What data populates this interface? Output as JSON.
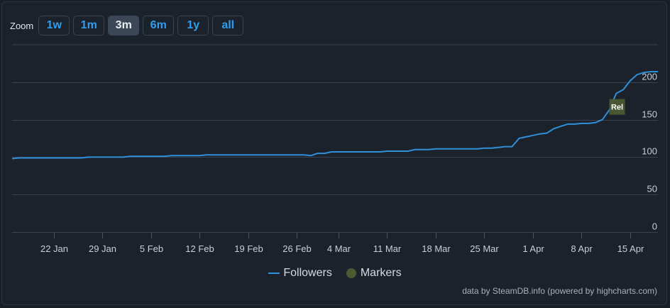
{
  "zoom": {
    "label": "Zoom",
    "buttons": [
      {
        "label": "1w",
        "active": false
      },
      {
        "label": "1m",
        "active": false
      },
      {
        "label": "3m",
        "active": true
      },
      {
        "label": "6m",
        "active": false
      },
      {
        "label": "1y",
        "active": false
      },
      {
        "label": "all",
        "active": false
      }
    ]
  },
  "legend": {
    "followers": "Followers",
    "markers": "Markers"
  },
  "credits": "data by SteamDB.info (powered by highcharts.com)",
  "colors": {
    "line": "#2f8fd8",
    "marker": "#4c5a33",
    "grid": "#3a4250",
    "text": "#d6dbe0"
  },
  "chart_data": {
    "type": "line",
    "title": "",
    "xlabel": "",
    "ylabel": "",
    "ylim": [
      0,
      250
    ],
    "yticks": [
      0,
      50,
      100,
      150,
      200
    ],
    "xrange": [
      "2025-01-16",
      "2025-04-19"
    ],
    "xticks": [
      {
        "date": "2025-01-22",
        "label": "22 Jan"
      },
      {
        "date": "2025-01-29",
        "label": "29 Jan"
      },
      {
        "date": "2025-02-05",
        "label": "5 Feb"
      },
      {
        "date": "2025-02-12",
        "label": "12 Feb"
      },
      {
        "date": "2025-02-19",
        "label": "19 Feb"
      },
      {
        "date": "2025-02-26",
        "label": "26 Feb"
      },
      {
        "date": "2025-03-04",
        "label": "4 Mar"
      },
      {
        "date": "2025-03-11",
        "label": "11 Mar"
      },
      {
        "date": "2025-03-18",
        "label": "18 Mar"
      },
      {
        "date": "2025-03-25",
        "label": "25 Mar"
      },
      {
        "date": "2025-04-01",
        "label": "1 Apr"
      },
      {
        "date": "2025-04-08",
        "label": "8 Apr"
      },
      {
        "date": "2025-04-15",
        "label": "15 Apr"
      }
    ],
    "grid": true,
    "legend_position": "bottom-center",
    "series": [
      {
        "name": "Followers",
        "points": [
          [
            "2025-01-16",
            98
          ],
          [
            "2025-01-17",
            99
          ],
          [
            "2025-01-26",
            99
          ],
          [
            "2025-01-27",
            100
          ],
          [
            "2025-02-01",
            100
          ],
          [
            "2025-02-02",
            101
          ],
          [
            "2025-02-07",
            101
          ],
          [
            "2025-02-08",
            102
          ],
          [
            "2025-02-12",
            102
          ],
          [
            "2025-02-13",
            103
          ],
          [
            "2025-02-27",
            103
          ],
          [
            "2025-02-28",
            102
          ],
          [
            "2025-03-01",
            105
          ],
          [
            "2025-03-02",
            105
          ],
          [
            "2025-03-03",
            107
          ],
          [
            "2025-03-10",
            107
          ],
          [
            "2025-03-11",
            108
          ],
          [
            "2025-03-14",
            108
          ],
          [
            "2025-03-15",
            110
          ],
          [
            "2025-03-17",
            110
          ],
          [
            "2025-03-18",
            111
          ],
          [
            "2025-03-24",
            111
          ],
          [
            "2025-03-25",
            112
          ],
          [
            "2025-03-26",
            112
          ],
          [
            "2025-03-27",
            113
          ],
          [
            "2025-03-28",
            114
          ],
          [
            "2025-03-29",
            114
          ],
          [
            "2025-03-30",
            125
          ],
          [
            "2025-03-31",
            127
          ],
          [
            "2025-04-01",
            129
          ],
          [
            "2025-04-02",
            131
          ],
          [
            "2025-04-03",
            132
          ],
          [
            "2025-04-04",
            138
          ],
          [
            "2025-04-05",
            141
          ],
          [
            "2025-04-06",
            144
          ],
          [
            "2025-04-07",
            144
          ],
          [
            "2025-04-08",
            145
          ],
          [
            "2025-04-09",
            145
          ],
          [
            "2025-04-10",
            146
          ],
          [
            "2025-04-11",
            150
          ],
          [
            "2025-04-12",
            163
          ],
          [
            "2025-04-13",
            185
          ],
          [
            "2025-04-14",
            190
          ],
          [
            "2025-04-15",
            202
          ],
          [
            "2025-04-16",
            210
          ],
          [
            "2025-04-17",
            213
          ],
          [
            "2025-04-18",
            214
          ],
          [
            "2025-04-19",
            214
          ]
        ]
      }
    ],
    "markers": [
      {
        "date": "2025-04-12",
        "y": 167,
        "label": "Rel"
      }
    ]
  }
}
